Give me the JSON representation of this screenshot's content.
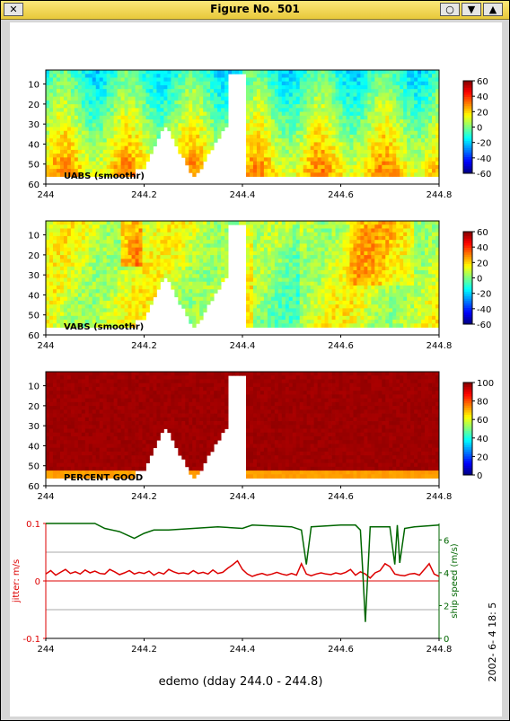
{
  "window": {
    "title": "Figure No. 501",
    "close_glyph": "✕",
    "buttons": [
      "○",
      "▼",
      "▲"
    ]
  },
  "footer": {
    "xlabel": "edemo (dday 244.0 - 244.8)",
    "timestamp": "2002- 6- 4  18: 5"
  },
  "chart_data": [
    {
      "type": "heatmap",
      "label": "UABS  (smoothr)",
      "x_ticks": [
        "244",
        "244.2",
        "244.4",
        "244.6",
        "244.8"
      ],
      "y_ticks": [
        "10",
        "20",
        "30",
        "40",
        "50",
        "60"
      ],
      "xlim": [
        244,
        244.8
      ],
      "ylim": [
        60,
        3
      ],
      "colorbar_ticks": [
        "60",
        "40",
        "20",
        "0",
        "-20",
        "-40",
        "-60"
      ],
      "colorbar_range": [
        -60,
        60
      ],
      "colormap": "jet",
      "notes": "depth-time section of east velocity; mostly blue/cyan upper layer, yellow lower layer, white gaps near 244.15-244.4"
    },
    {
      "type": "heatmap",
      "label": "VABS  (smoothr)",
      "x_ticks": [
        "244",
        "244.2",
        "244.4",
        "244.6",
        "244.8"
      ],
      "y_ticks": [
        "10",
        "20",
        "30",
        "40",
        "50",
        "60"
      ],
      "xlim": [
        244,
        244.8
      ],
      "ylim": [
        60,
        3
      ],
      "colorbar_ticks": [
        "60",
        "40",
        "20",
        "0",
        "-20",
        "-40",
        "-60"
      ],
      "colorbar_range": [
        -60,
        60
      ],
      "colormap": "jet",
      "notes": "depth-time section of north velocity; mostly yellow/light green with orange near 244.17 and 244.62-244.75"
    },
    {
      "type": "heatmap",
      "label": "PERCENT GOOD",
      "x_ticks": [
        "244",
        "244.2",
        "244.4",
        "244.6",
        "244.8"
      ],
      "y_ticks": [
        "10",
        "20",
        "30",
        "40",
        "50",
        "60"
      ],
      "xlim": [
        244,
        244.8
      ],
      "ylim": [
        60,
        3
      ],
      "colorbar_ticks": [
        "100",
        "80",
        "60",
        "40",
        "20",
        "0"
      ],
      "colorbar_range": [
        0,
        100
      ],
      "colormap": "jet",
      "notes": "near 100 percent good everywhere above ~55 m, yellow/green fringe at bottom"
    },
    {
      "type": "line",
      "xlim": [
        244,
        244.8
      ],
      "x_ticks": [
        "244",
        "244.2",
        "244.4",
        "244.6",
        "244.8"
      ],
      "ylabel_left": "jitter: m/s",
      "ylabel_right": "ship speed (m/s)",
      "ylim_left": [
        -0.1,
        0.1
      ],
      "y_ticks_left": [
        "0.1",
        "0",
        "-0.1"
      ],
      "ylim_right": [
        0,
        7
      ],
      "y_ticks_right": [
        "6",
        "4",
        "2",
        "0"
      ],
      "series": [
        {
          "axis": "left",
          "color": "#dd0000",
          "x": [
            244.0,
            244.01,
            244.02,
            244.03,
            244.04,
            244.05,
            244.06,
            244.07,
            244.08,
            244.09,
            244.1,
            244.11,
            244.12,
            244.13,
            244.14,
            244.15,
            244.16,
            244.17,
            244.18,
            244.19,
            244.2,
            244.21,
            244.22,
            244.23,
            244.24,
            244.25,
            244.26,
            244.27,
            244.28,
            244.29,
            244.3,
            244.31,
            244.32,
            244.33,
            244.34,
            244.35,
            244.36,
            244.37,
            244.38,
            244.39,
            244.4,
            244.41,
            244.42,
            244.43,
            244.44,
            244.45,
            244.46,
            244.47,
            244.48,
            244.49,
            244.5,
            244.51,
            244.52,
            244.53,
            244.54,
            244.55,
            244.56,
            244.57,
            244.58,
            244.59,
            244.6,
            244.61,
            244.62,
            244.63,
            244.64,
            244.65,
            244.66,
            244.67,
            244.68,
            244.69,
            244.7,
            244.71,
            244.72,
            244.73,
            244.74,
            244.75,
            244.76,
            244.77,
            244.78,
            244.79,
            244.8
          ],
          "y": [
            0.012,
            0.018,
            0.01,
            0.015,
            0.02,
            0.013,
            0.016,
            0.012,
            0.019,
            0.014,
            0.017,
            0.013,
            0.012,
            0.02,
            0.016,
            0.011,
            0.014,
            0.018,
            0.012,
            0.015,
            0.013,
            0.017,
            0.01,
            0.015,
            0.012,
            0.02,
            0.016,
            0.013,
            0.014,
            0.012,
            0.018,
            0.013,
            0.015,
            0.012,
            0.019,
            0.013,
            0.015,
            0.022,
            0.028,
            0.035,
            0.02,
            0.012,
            0.008,
            0.011,
            0.013,
            0.01,
            0.012,
            0.015,
            0.012,
            0.01,
            0.013,
            0.01,
            0.03,
            0.012,
            0.009,
            0.012,
            0.014,
            0.012,
            0.011,
            0.014,
            0.012,
            0.015,
            0.02,
            0.01,
            0.016,
            0.012,
            0.005,
            0.014,
            0.018,
            0.03,
            0.025,
            0.012,
            0.01,
            0.009,
            0.012,
            0.013,
            0.01,
            0.02,
            0.03,
            0.012,
            0.008
          ]
        },
        {
          "axis": "right",
          "color": "#006600",
          "x": [
            244.0,
            244.05,
            244.1,
            244.12,
            244.15,
            244.18,
            244.2,
            244.22,
            244.25,
            244.3,
            244.35,
            244.4,
            244.42,
            244.5,
            244.52,
            244.53,
            244.54,
            244.6,
            244.63,
            244.64,
            244.645,
            244.65,
            244.66,
            244.7,
            244.71,
            244.715,
            244.72,
            244.73,
            244.75,
            244.8
          ],
          "y": [
            7.0,
            7.0,
            7.0,
            6.7,
            6.5,
            6.1,
            6.4,
            6.6,
            6.6,
            6.7,
            6.8,
            6.7,
            6.9,
            6.8,
            6.6,
            4.5,
            6.8,
            6.9,
            6.9,
            6.6,
            4.0,
            1.0,
            6.8,
            6.8,
            4.5,
            6.9,
            4.6,
            6.7,
            6.8,
            6.9
          ]
        }
      ]
    }
  ]
}
